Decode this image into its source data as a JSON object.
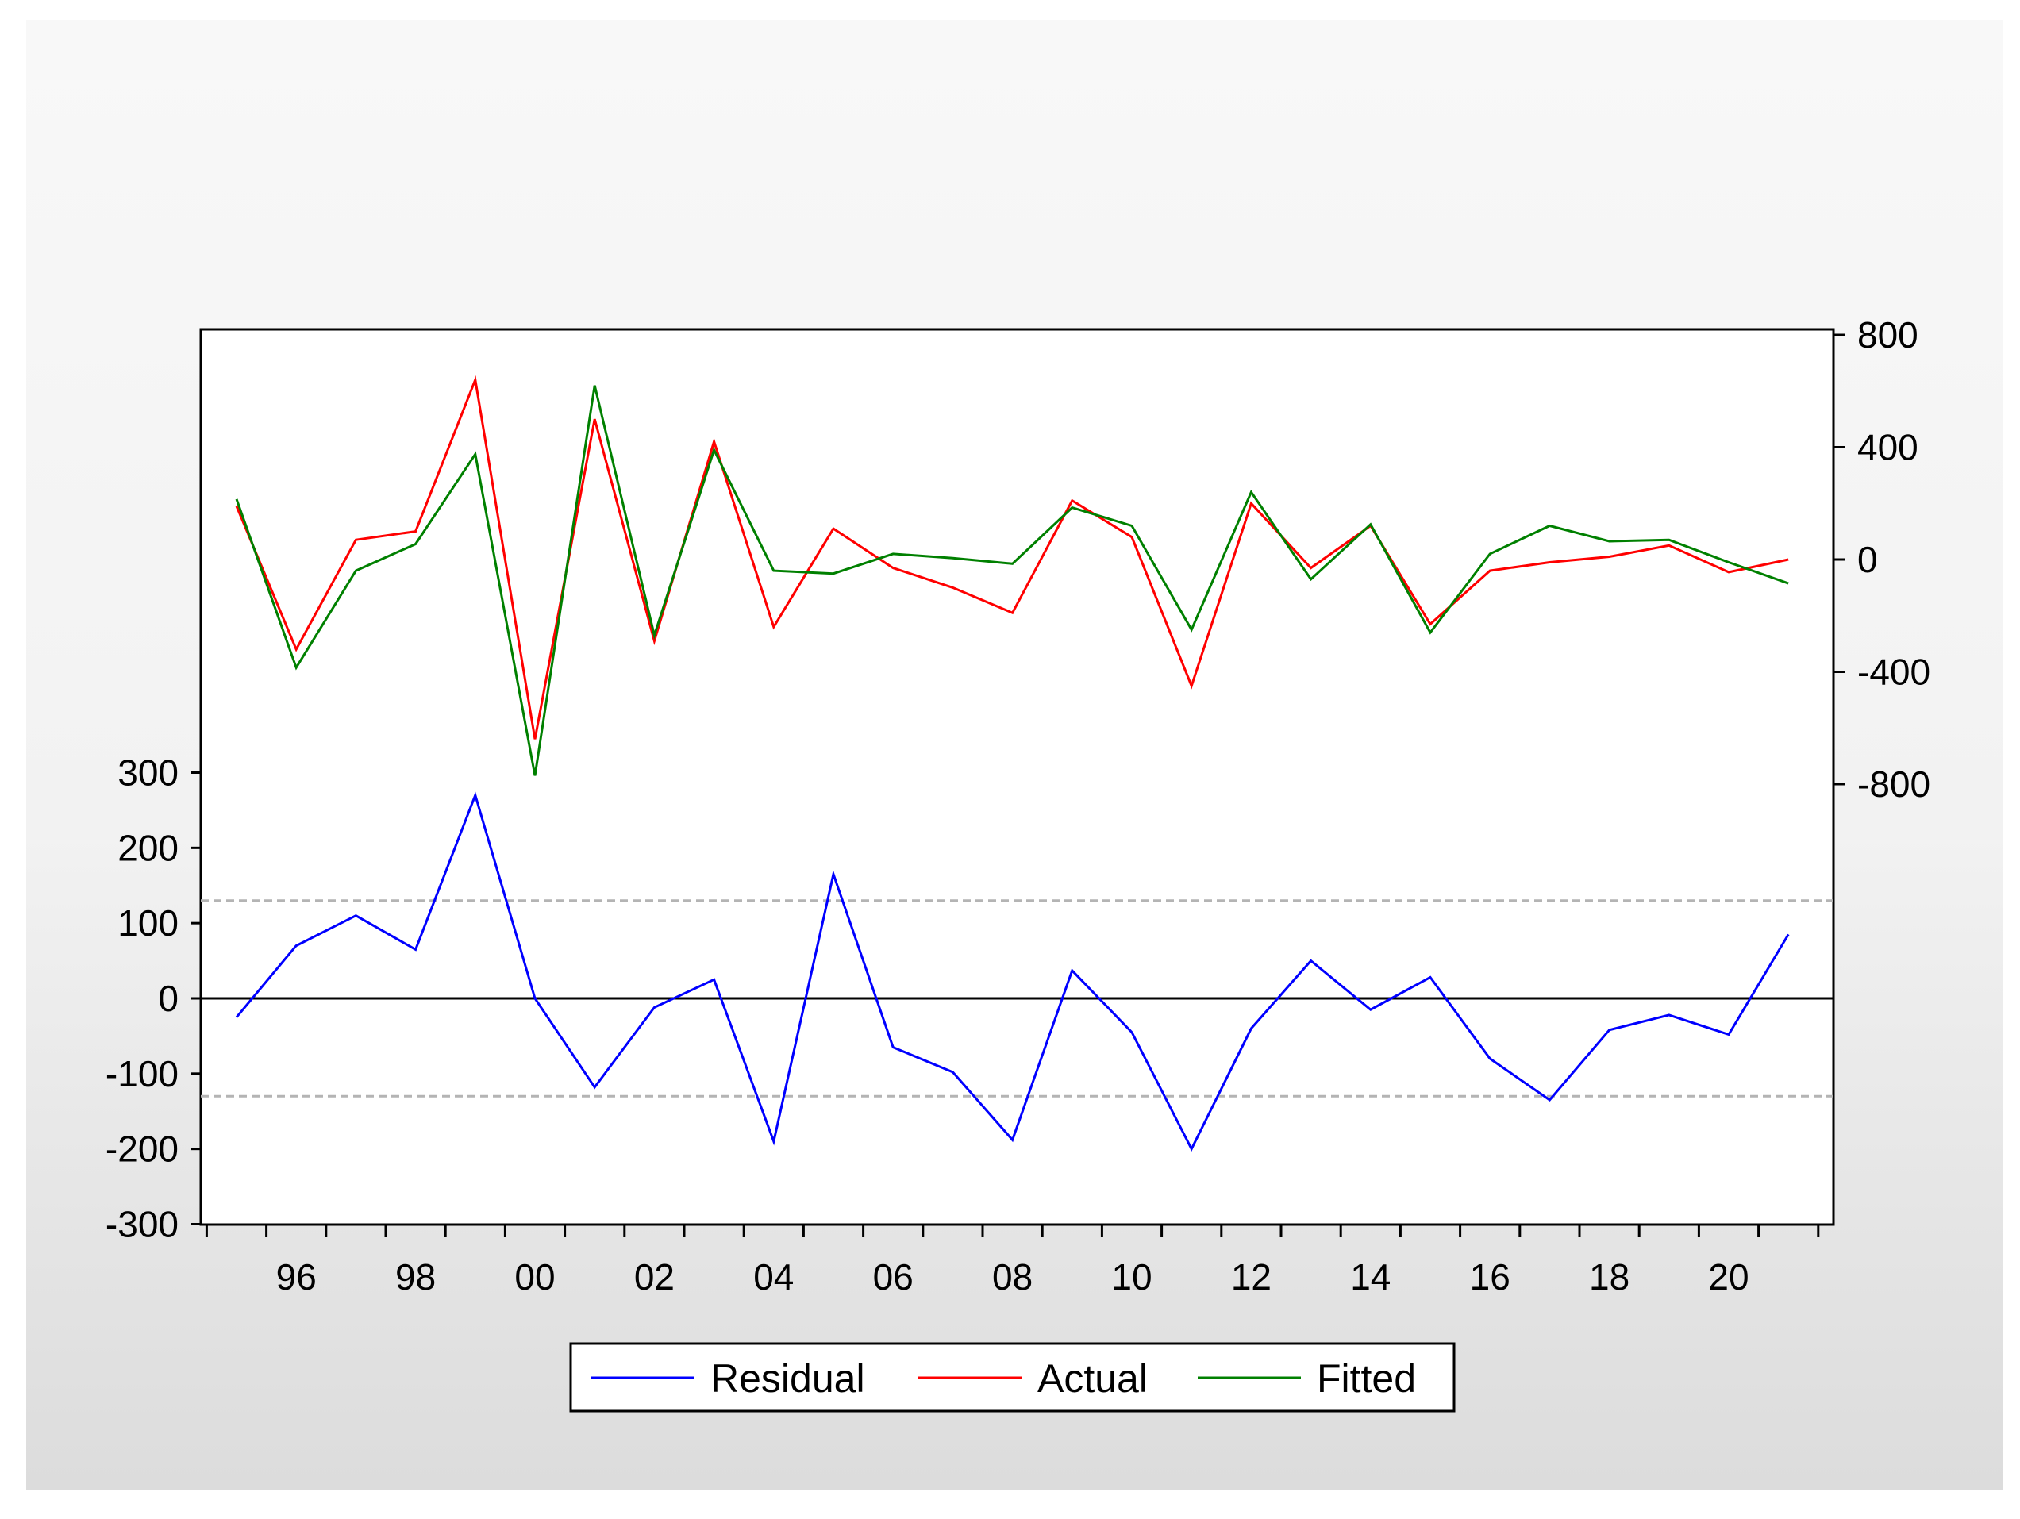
{
  "chart_data": {
    "type": "line",
    "x": [
      1995,
      1996,
      1997,
      1998,
      1999,
      2000,
      2001,
      2002,
      2003,
      2004,
      2005,
      2006,
      2007,
      2008,
      2009,
      2010,
      2011,
      2012,
      2013,
      2014,
      2015,
      2016,
      2017,
      2018,
      2019,
      2020,
      2021
    ],
    "x_tick_labels": [
      "96",
      "98",
      "00",
      "02",
      "04",
      "06",
      "08",
      "10",
      "12",
      "14",
      "16",
      "18",
      "20"
    ],
    "x_tick_years": [
      1996,
      1998,
      2000,
      2002,
      2004,
      2006,
      2008,
      2010,
      2012,
      2014,
      2016,
      2018,
      2020
    ],
    "xlim": [
      1994.5,
      2021.5
    ],
    "left_axis": {
      "ylim": [
        -300,
        300
      ],
      "ticks": [
        300,
        200,
        100,
        0,
        -100,
        -200,
        -300
      ],
      "tick_labels": [
        "300",
        "200",
        "100",
        "0",
        "-100",
        "-200",
        "-300"
      ]
    },
    "right_axis": {
      "ylim": [
        -800,
        800
      ],
      "ticks": [
        800,
        400,
        0,
        -400,
        -800
      ],
      "tick_labels": [
        "800",
        "400",
        "0",
        "-400",
        "-800"
      ]
    },
    "reference_lines": {
      "zero": 0,
      "band": [
        130,
        -130
      ]
    },
    "series": [
      {
        "name": "Residual",
        "axis": "left",
        "color": "#0000ff",
        "values": [
          -25,
          70,
          110,
          65,
          270,
          0,
          -118,
          -12,
          25,
          -190,
          165,
          -65,
          -98,
          -188,
          37,
          -45,
          -200,
          -40,
          50,
          -15,
          28,
          -80,
          -135,
          -42,
          -22,
          -48,
          85
        ]
      },
      {
        "name": "Actual",
        "axis": "right",
        "color": "#ff0000",
        "values": [
          190,
          -320,
          70,
          100,
          640,
          -640,
          500,
          -290,
          420,
          -240,
          110,
          -30,
          -100,
          -190,
          210,
          80,
          -450,
          200,
          -30,
          120,
          -230,
          -40,
          -10,
          10,
          50,
          -45,
          0
        ]
      },
      {
        "name": "Fitted",
        "axis": "right",
        "color": "#008000",
        "values": [
          215,
          -385,
          -40,
          55,
          375,
          -770,
          620,
          -270,
          390,
          -40,
          -50,
          20,
          5,
          -15,
          185,
          120,
          -250,
          240,
          -70,
          125,
          -260,
          20,
          120,
          65,
          70,
          -10,
          -85
        ]
      }
    ],
    "legend": {
      "placement": "bottom-center",
      "entries": [
        "Residual",
        "Actual",
        "Fitted"
      ]
    },
    "grid": false
  }
}
